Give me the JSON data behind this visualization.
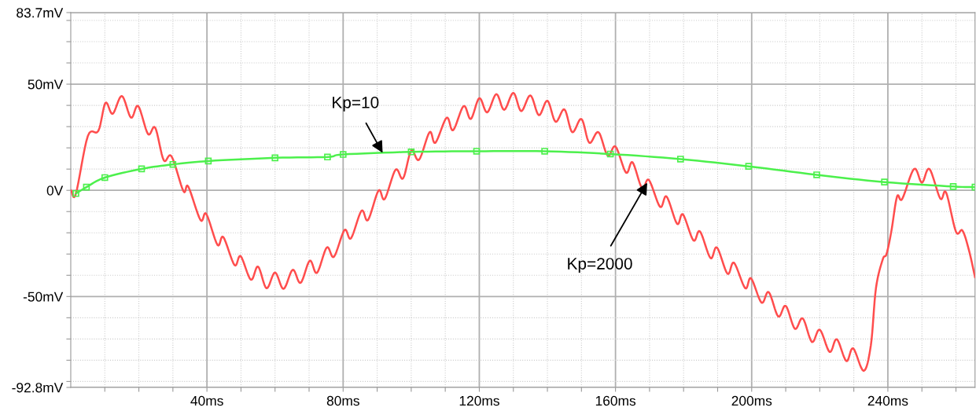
{
  "chart_data": {
    "type": "line",
    "xlim": [
      0,
      265.6
    ],
    "ylim": [
      -92.8,
      83.7
    ],
    "xticks": [
      {
        "value": 10,
        "label": null
      },
      {
        "value": 20,
        "label": null
      },
      {
        "value": 30,
        "label": null
      },
      {
        "value": 40,
        "label": "40ms"
      },
      {
        "value": 50,
        "label": null
      },
      {
        "value": 60,
        "label": null
      },
      {
        "value": 70,
        "label": null
      },
      {
        "value": 80,
        "label": "80ms"
      },
      {
        "value": 90,
        "label": null
      },
      {
        "value": 100,
        "label": null
      },
      {
        "value": 110,
        "label": null
      },
      {
        "value": 120,
        "label": "120ms"
      },
      {
        "value": 130,
        "label": null
      },
      {
        "value": 140,
        "label": null
      },
      {
        "value": 150,
        "label": null
      },
      {
        "value": 160,
        "label": "160ms"
      },
      {
        "value": 170,
        "label": null
      },
      {
        "value": 180,
        "label": null
      },
      {
        "value": 190,
        "label": null
      },
      {
        "value": 200,
        "label": "200ms"
      },
      {
        "value": 210,
        "label": null
      },
      {
        "value": 220,
        "label": null
      },
      {
        "value": 230,
        "label": null
      },
      {
        "value": 240,
        "label": "240ms"
      },
      {
        "value": 250,
        "label": null
      },
      {
        "value": 260,
        "label": null
      }
    ],
    "yticks": [
      {
        "value": -92.8,
        "label": "-92.8mV"
      },
      {
        "value": -90,
        "label": null
      },
      {
        "value": -80,
        "label": null
      },
      {
        "value": -70,
        "label": null
      },
      {
        "value": -60,
        "label": null
      },
      {
        "value": -50,
        "label": "-50mV"
      },
      {
        "value": -40,
        "label": null
      },
      {
        "value": -30,
        "label": null
      },
      {
        "value": -20,
        "label": null
      },
      {
        "value": -10,
        "label": null
      },
      {
        "value": 0,
        "label": "0V"
      },
      {
        "value": 10,
        "label": null
      },
      {
        "value": 20,
        "label": null
      },
      {
        "value": 30,
        "label": null
      },
      {
        "value": 40,
        "label": null
      },
      {
        "value": 50,
        "label": "50mV"
      },
      {
        "value": 60,
        "label": null
      },
      {
        "value": 70,
        "label": null
      },
      {
        "value": 80,
        "label": null
      },
      {
        "value": 83.7,
        "label": "83.7mV"
      }
    ],
    "grid": true,
    "line_style": "solid",
    "series": [
      {
        "color": "#ff4d4d",
        "x": [
          0,
          1.5,
          5.0,
          8.1,
          10.2,
          12.3,
          15.0,
          17.7,
          19.8,
          22.7,
          24.8,
          27.3,
          29.6,
          33.1,
          34.5,
          38.1,
          39.8,
          43.1,
          44.8,
          48.1,
          49.9,
          52.9,
          55.0,
          57.5,
          60.0,
          62.5,
          65.2,
          67.5,
          70.2,
          72.3,
          75.2,
          77.3,
          80.4,
          82.3,
          85.4,
          87.3,
          90.4,
          92.2,
          95.4,
          97.6,
          100.0,
          102.3,
          105.4,
          107.1,
          110.4,
          112.3,
          115.4,
          117.5,
          120.0,
          122.3,
          125.0,
          127.3,
          130.0,
          132.3,
          135.0,
          137.5,
          140.0,
          142.4,
          145.0,
          147.3,
          150.0,
          152.3,
          155.0,
          157.7,
          160.0,
          163.1,
          165.0,
          167.8,
          169.8,
          173.1,
          175.0,
          178.1,
          179.8,
          182.9,
          184.8,
          187.9,
          189.8,
          192.9,
          194.8,
          198.1,
          199.8,
          202.9,
          205.0,
          207.8,
          210.0,
          212.7,
          215.0,
          217.7,
          220.0,
          222.9,
          225.0,
          227.8,
          229.8,
          232.9,
          235.0,
          236.5,
          238.5,
          239.6,
          241.0,
          242.7,
          244.2,
          247.7,
          250.0,
          252.2,
          255.4,
          257.1,
          260.0,
          261.9,
          263.8,
          265.6
        ],
        "values": [
          0,
          -1.6,
          25.5,
          28,
          41.2,
          36,
          44.4,
          34.2,
          39.7,
          26.5,
          29.5,
          14.2,
          16,
          -0.4,
          1.8,
          -14,
          -11.1,
          -25.7,
          -22,
          -35.2,
          -31,
          -42.1,
          -35.9,
          -46.1,
          -38.7,
          -46.4,
          -37.4,
          -43.6,
          -33.1,
          -38.9,
          -26.9,
          -31.3,
          -18.7,
          -22.6,
          -9.6,
          -14,
          -0.1,
          -4.1,
          9.7,
          5.6,
          18.7,
          14.4,
          27.4,
          22.4,
          34.2,
          28.3,
          39.7,
          33.6,
          43.4,
          36.7,
          45.3,
          37.9,
          45.9,
          37.3,
          44.7,
          35.4,
          42.2,
          32.3,
          38.1,
          27.4,
          33.6,
          22.4,
          27.4,
          16.3,
          20.6,
          8.3,
          13.2,
          1.0,
          4.9,
          -7.8,
          -2.9,
          -15.8,
          -11.3,
          -23.6,
          -19.3,
          -31.9,
          -26.9,
          -39.3,
          -34.1,
          -46.1,
          -41.4,
          -52.9,
          -47.9,
          -59.4,
          -54.4,
          -65.2,
          -60.3,
          -71.4,
          -65.6,
          -76.1,
          -70.1,
          -80.4,
          -74.4,
          -85,
          -73,
          -46.1,
          -32.5,
          -30,
          -19.5,
          -2.9,
          -4.1,
          10.1,
          3.6,
          10.1,
          -3.9,
          -1,
          -19.5,
          -18.9,
          -28.1,
          -40.9
        ]
      },
      {
        "color": "#4cf04c",
        "marker": "square",
        "x": [
          1.5,
          4.6,
          10.0,
          20.8,
          30.0,
          40.4,
          60.0,
          75.4,
          80.0,
          100.0,
          119.2,
          139.2,
          158.5,
          179.1,
          199.1,
          219.1,
          239.0,
          259.2,
          265.6
        ],
        "values": [
          -1.5,
          1.5,
          6,
          10.1,
          12.2,
          13.8,
          15.3,
          15.7,
          16.9,
          18.1,
          18.4,
          18.4,
          17.1,
          14.7,
          11.3,
          7.3,
          3.9,
          1.8,
          1.5
        ]
      }
    ],
    "annotations": [
      {
        "text": "Kp=10",
        "x": 91.6,
        "y": 17.6
      },
      {
        "text": "Kp=2000",
        "x": 169.8,
        "y": 4.9
      }
    ]
  }
}
